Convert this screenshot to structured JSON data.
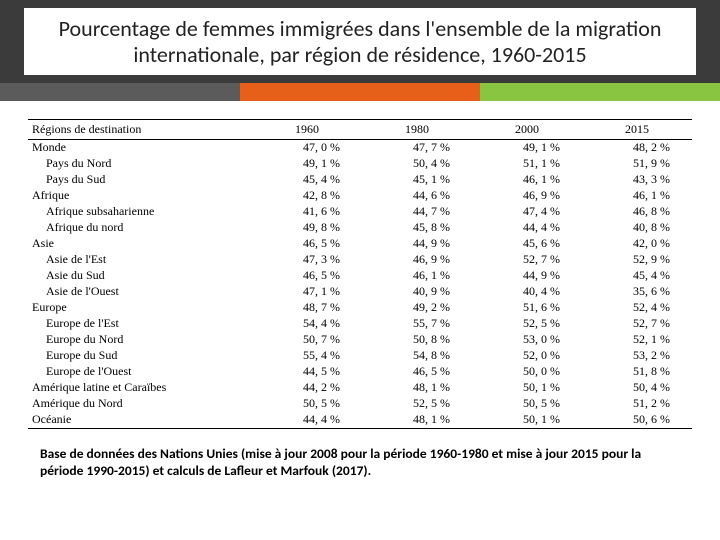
{
  "title": "Pourcentage de femmes immigrées dans l'ensemble de la migration internationale, par région de résidence, 1960-2015",
  "stripes": [
    "#5b5b5b",
    "#e6601a",
    "#89c540"
  ],
  "table": {
    "header_label": "Régions de destination",
    "years": [
      "1960",
      "1980",
      "2000",
      "2015"
    ],
    "rows": [
      {
        "label": "Monde",
        "indent": 0,
        "vals": [
          "47, 0 %",
          "47, 7 %",
          "49, 1 %",
          "48, 2 %"
        ]
      },
      {
        "label": "Pays du Nord",
        "indent": 1,
        "vals": [
          "49, 1 %",
          "50, 4 %",
          "51, 1 %",
          "51, 9 %"
        ]
      },
      {
        "label": "Pays du Sud",
        "indent": 1,
        "vals": [
          "45, 4 %",
          "45, 1 %",
          "46, 1 %",
          "43, 3 %"
        ]
      },
      {
        "label": "Afrique",
        "indent": 0,
        "vals": [
          "42, 8 %",
          "44, 6 %",
          "46, 9 %",
          "46, 1 %"
        ]
      },
      {
        "label": "Afrique subsaharienne",
        "indent": 1,
        "vals": [
          "41, 6 %",
          "44, 7 %",
          "47, 4 %",
          "46, 8 %"
        ]
      },
      {
        "label": "Afrique du nord",
        "indent": 1,
        "vals": [
          "49, 8 %",
          "45, 8 %",
          "44, 4 %",
          "40, 8 %"
        ]
      },
      {
        "label": "Asie",
        "indent": 0,
        "vals": [
          "46, 5 %",
          "44, 9 %",
          "45, 6 %",
          "42, 0 %"
        ]
      },
      {
        "label": "Asie de l'Est",
        "indent": 1,
        "vals": [
          "47, 3 %",
          "46, 9 %",
          "52, 7 %",
          "52, 9 %"
        ]
      },
      {
        "label": "Asie du Sud",
        "indent": 1,
        "vals": [
          "46, 5 %",
          "46, 1 %",
          "44, 9 %",
          "45, 4 %"
        ]
      },
      {
        "label": "Asie de l'Ouest",
        "indent": 1,
        "vals": [
          "47, 1 %",
          "40, 9 %",
          "40, 4 %",
          "35, 6 %"
        ]
      },
      {
        "label": "Europe",
        "indent": 0,
        "vals": [
          "48, 7 %",
          "49, 2 %",
          "51, 6 %",
          "52, 4 %"
        ]
      },
      {
        "label": "Europe de l'Est",
        "indent": 1,
        "vals": [
          "54, 4 %",
          "55, 7 %",
          "52, 5 %",
          "52, 7 %"
        ]
      },
      {
        "label": "Europe du Nord",
        "indent": 1,
        "vals": [
          "50, 7 %",
          "50, 8 %",
          "53, 0 %",
          "52, 1 %"
        ]
      },
      {
        "label": "Europe du Sud",
        "indent": 1,
        "vals": [
          "55, 4 %",
          "54, 8 %",
          "52, 0 %",
          "53, 2 %"
        ]
      },
      {
        "label": "Europe de l'Ouest",
        "indent": 1,
        "vals": [
          "44, 5 %",
          "46, 5 %",
          "50, 0 %",
          "51, 8 %"
        ]
      },
      {
        "label": "Amérique latine et Caraïbes",
        "indent": 0,
        "vals": [
          "44, 2 %",
          "48, 1 %",
          "50, 1 %",
          "50, 4 %"
        ]
      },
      {
        "label": "Amérique du Nord",
        "indent": 0,
        "vals": [
          "50, 5 %",
          "52, 5 %",
          "50, 5 %",
          "51, 2 %"
        ]
      },
      {
        "label": "Océanie",
        "indent": 0,
        "vals": [
          "44, 4 %",
          "48, 1 %",
          "50, 1 %",
          "50, 6 %"
        ]
      }
    ]
  },
  "footnote": "Base de données des Nations Unies (mise à jour 2008 pour la période 1960-1980 et mise à jour 2015 pour la période 1990-2015) et calculs de Lafleur et Marfouk (2017)."
}
